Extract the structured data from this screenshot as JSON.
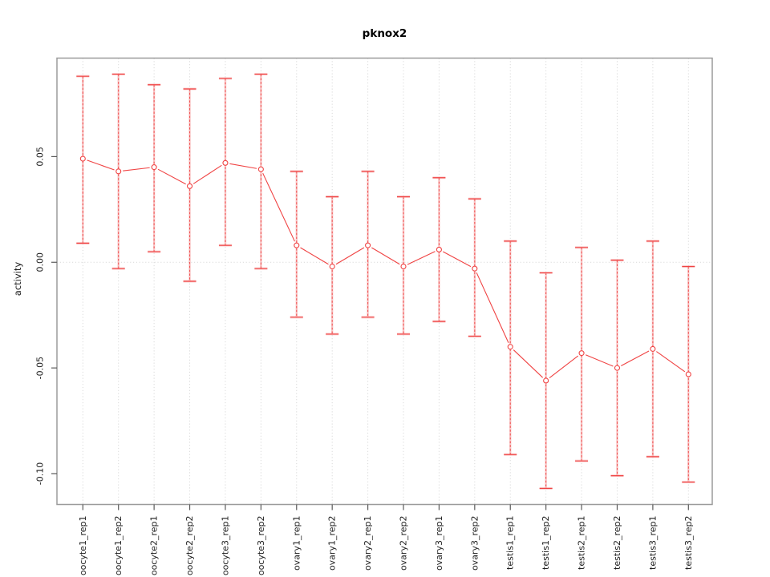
{
  "chart_data": {
    "type": "line",
    "title": "pknox2",
    "ylabel": "activity",
    "xlabel": "",
    "categories": [
      "oocyte1_rep1",
      "oocyte1_rep2",
      "oocyte2_rep1",
      "oocyte2_rep2",
      "oocyte3_rep1",
      "oocyte3_rep2",
      "ovary1_rep1",
      "ovary1_rep2",
      "ovary2_rep1",
      "ovary2_rep2",
      "ovary3_rep1",
      "ovary3_rep2",
      "testis1_rep1",
      "testis1_rep2",
      "testis2_rep1",
      "testis2_rep2",
      "testis3_rep1",
      "testis3_rep2"
    ],
    "series": [
      {
        "name": "activity",
        "values": [
          0.049,
          0.043,
          0.045,
          0.036,
          0.047,
          0.044,
          0.008,
          -0.002,
          0.008,
          -0.002,
          0.006,
          -0.003,
          -0.04,
          -0.056,
          -0.043,
          -0.05,
          -0.041,
          -0.053
        ],
        "upper": [
          0.088,
          0.089,
          0.084,
          0.082,
          0.087,
          0.089,
          0.043,
          0.031,
          0.043,
          0.031,
          0.04,
          0.03,
          0.01,
          -0.005,
          0.007,
          0.001,
          0.01,
          -0.002
        ],
        "lower": [
          0.009,
          -0.003,
          0.005,
          -0.009,
          0.008,
          -0.003,
          -0.026,
          -0.034,
          -0.026,
          -0.034,
          -0.028,
          -0.035,
          -0.091,
          -0.107,
          -0.094,
          -0.101,
          -0.092,
          -0.104
        ]
      }
    ],
    "yticks": [
      {
        "v": 0.05,
        "label": "0.05"
      },
      {
        "v": 0.0,
        "label": "0.00"
      },
      {
        "v": -0.05,
        "label": "-0.05"
      },
      {
        "v": -0.1,
        "label": "-0.10"
      }
    ],
    "ylim": [
      -0.1146,
      0.0966
    ],
    "grid": {
      "vertical_per_category": true,
      "hline_at_zero": true
    },
    "legend": "none",
    "marker": "open-circle",
    "colors": {
      "series": "#f04343",
      "error_bar_light": "#f59c9c",
      "grid": "#d9d9d9",
      "box": "#9b9b9b",
      "tick": "#5a5a5a",
      "text": "#1d1d1d",
      "background": "#ffffff"
    }
  }
}
